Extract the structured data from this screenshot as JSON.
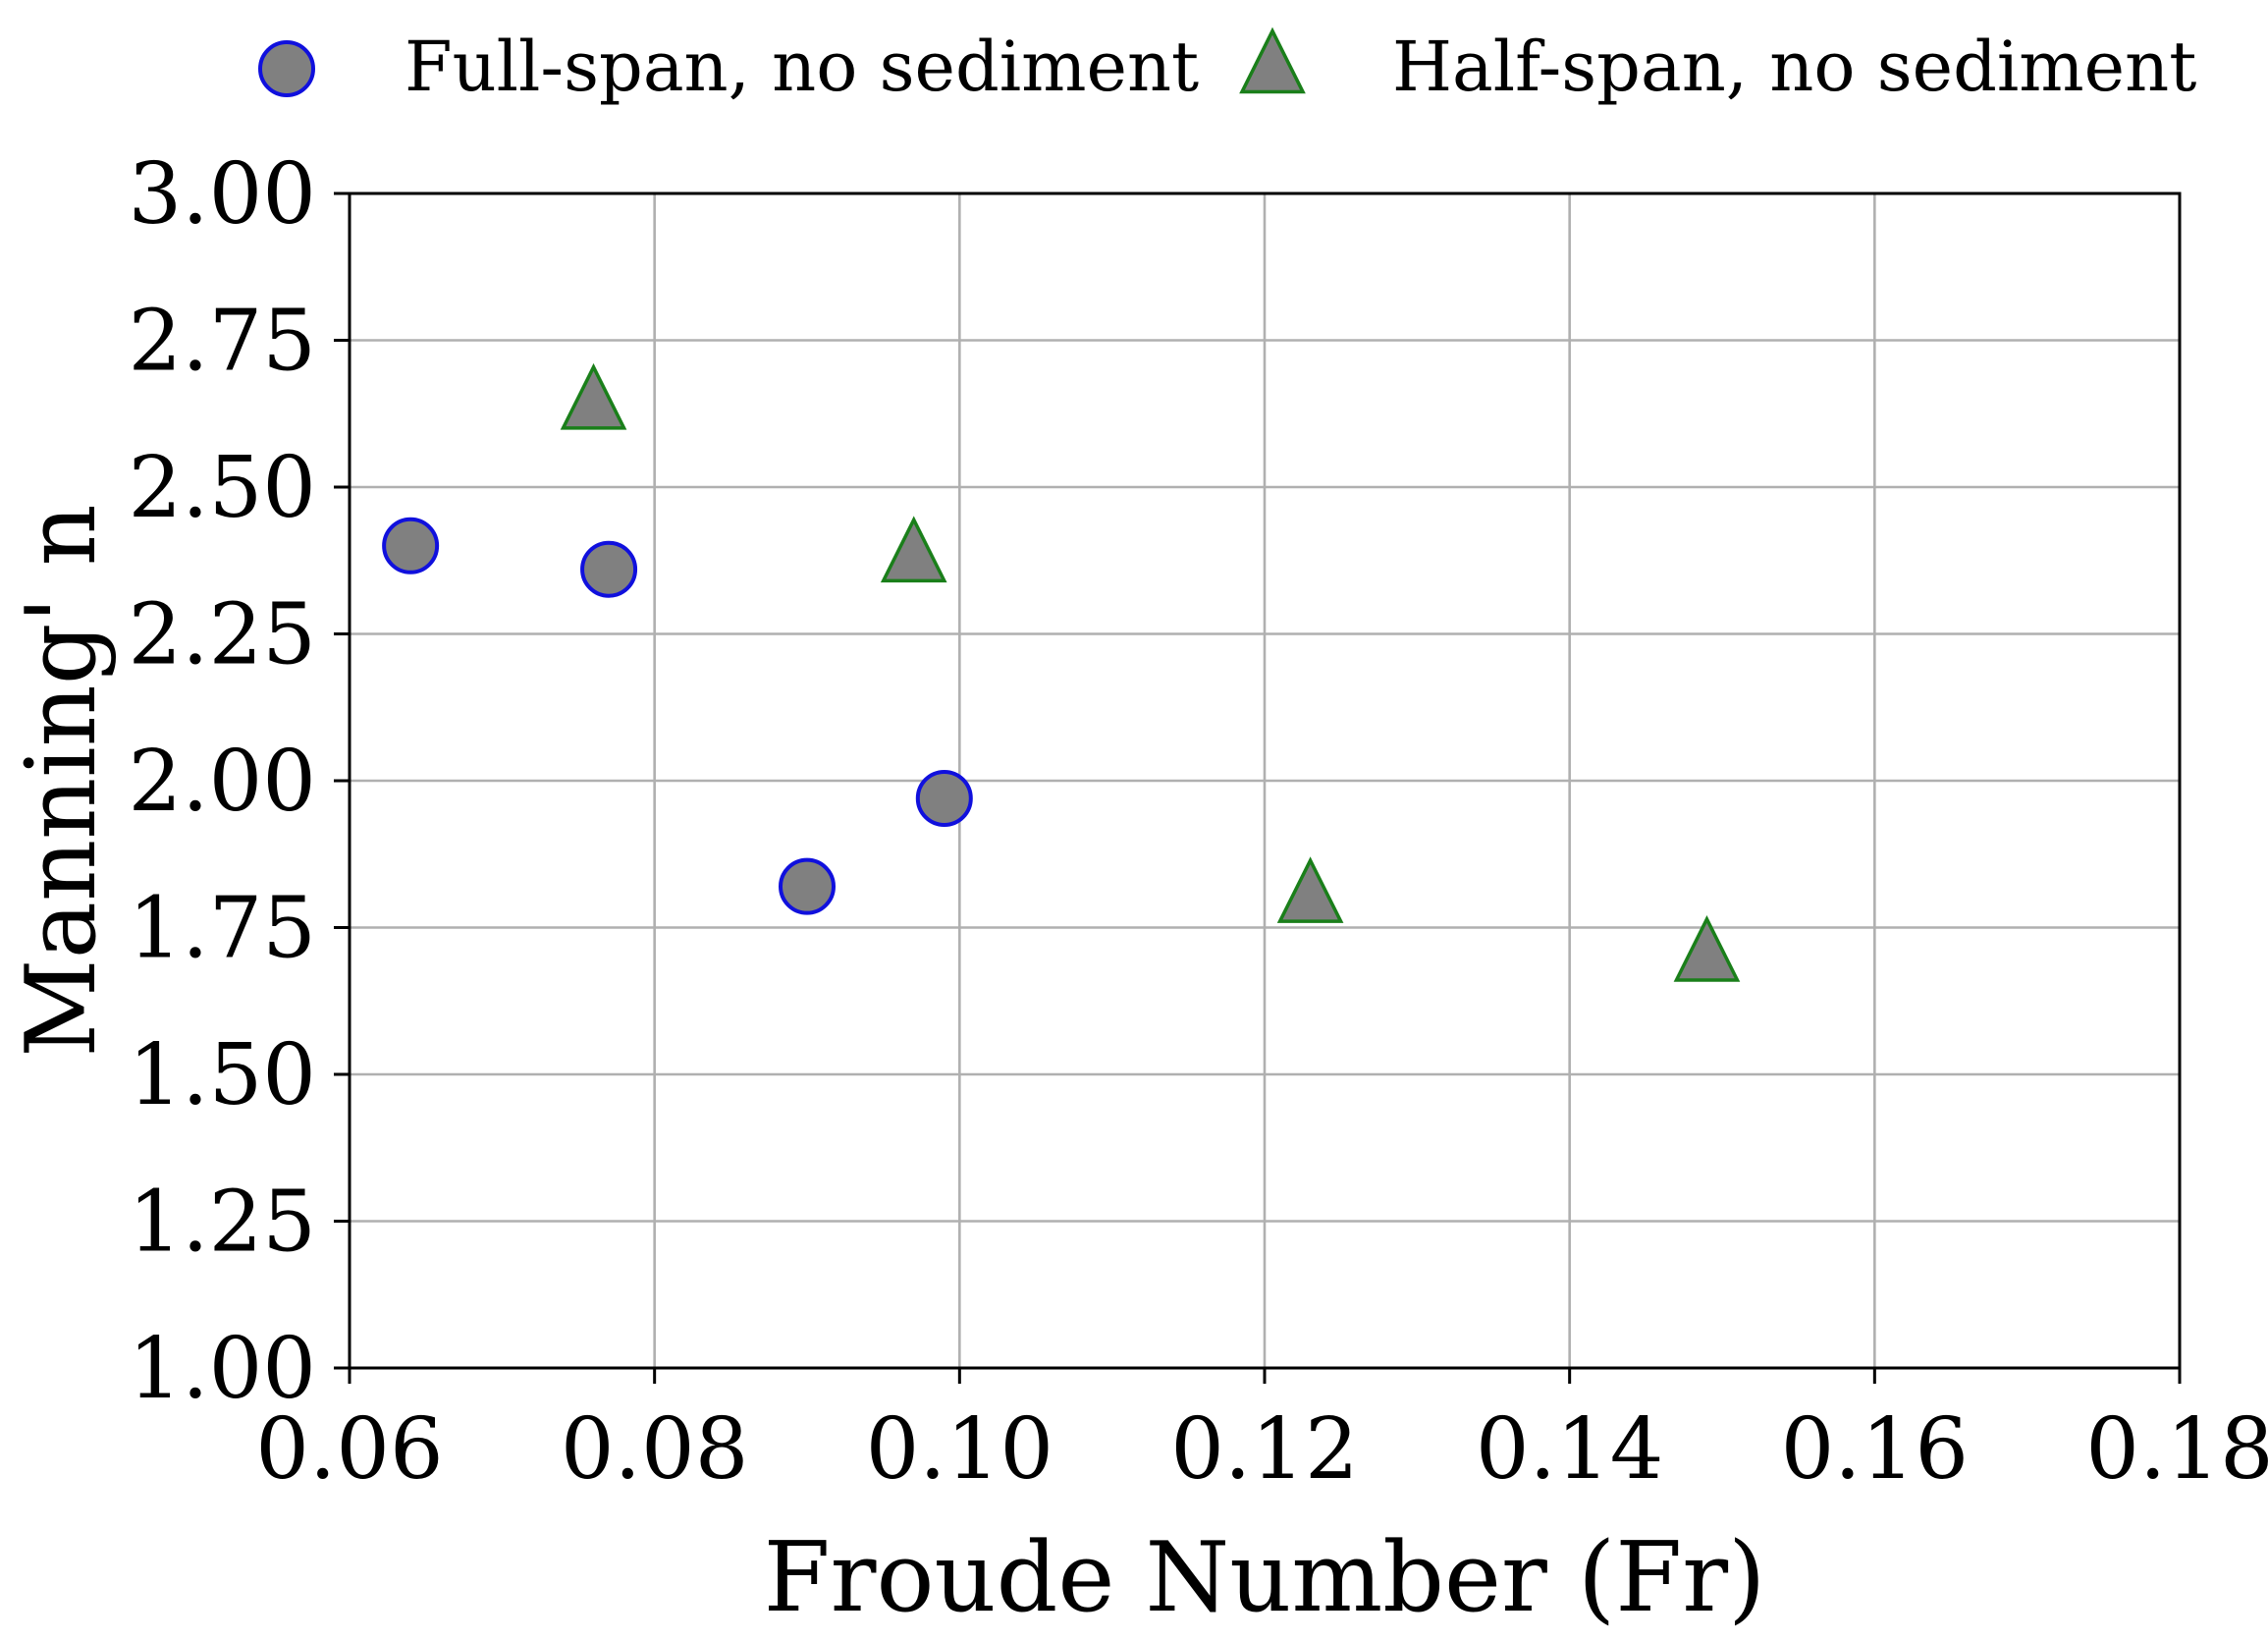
{
  "chart_data": {
    "type": "scatter",
    "xlabel": "Froude Number (Fr)",
    "ylabel": "Manning' n",
    "xlim": [
      0.06,
      0.18
    ],
    "ylim": [
      1.0,
      3.0
    ],
    "x_ticks": [
      "0.06",
      "0.08",
      "0.10",
      "0.12",
      "0.14",
      "0.16",
      "0.18"
    ],
    "y_ticks": [
      "1.00",
      "1.25",
      "1.50",
      "1.75",
      "2.00",
      "2.25",
      "2.50",
      "2.75",
      "3.00"
    ],
    "grid": true,
    "legend_position": "top",
    "series": [
      {
        "name": "Full-span, no sediment",
        "marker": "circle",
        "fill": "#808080",
        "edge": "#1010dd",
        "points": [
          [
            0.064,
            2.4
          ],
          [
            0.077,
            2.36
          ],
          [
            0.09,
            1.82
          ],
          [
            0.099,
            1.97
          ]
        ]
      },
      {
        "name": "Half-span, no sediment",
        "marker": "triangle",
        "fill": "#808080",
        "edge": "#1a7f1a",
        "points": [
          [
            0.076,
            2.64
          ],
          [
            0.097,
            2.38
          ],
          [
            0.123,
            1.8
          ],
          [
            0.149,
            1.7
          ]
        ]
      }
    ]
  }
}
